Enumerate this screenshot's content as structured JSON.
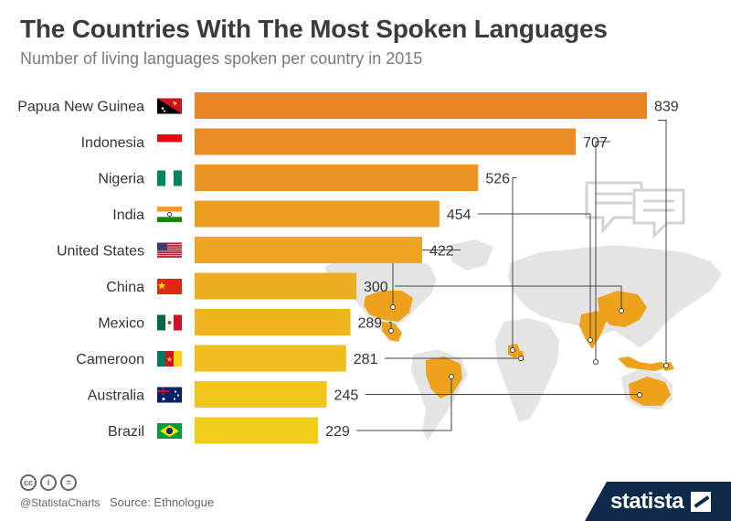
{
  "header": {
    "title": "The Countries With The Most Spoken Languages",
    "subtitle": "Number of living languages spoken per country in 2015"
  },
  "chart_data": {
    "type": "bar",
    "orientation": "horizontal",
    "title": "The Countries With The Most Spoken Languages",
    "subtitle": "Number of living languages spoken per country in 2015",
    "categories": [
      "Papua New Guinea",
      "Indonesia",
      "Nigeria",
      "India",
      "United States",
      "China",
      "Mexico",
      "Cameroon",
      "Australia",
      "Brazil"
    ],
    "values": [
      839,
      707,
      526,
      454,
      422,
      300,
      289,
      281,
      245,
      229
    ],
    "bar_colors": [
      "#e98525",
      "#ea8c24",
      "#eb9523",
      "#eb9d22",
      "#eca422",
      "#edad21",
      "#eeb51f",
      "#efbd1e",
      "#f0c51c",
      "#f1cc1b"
    ],
    "xlabel": "",
    "ylabel": "",
    "grid": false,
    "legend": "none"
  },
  "flags": [
    "papua-new-guinea-flag-icon",
    "indonesia-flag-icon",
    "nigeria-flag-icon",
    "india-flag-icon",
    "united-states-flag-icon",
    "china-flag-icon",
    "mexico-flag-icon",
    "cameroon-flag-icon",
    "australia-flag-icon",
    "brazil-flag-icon"
  ],
  "colors": {
    "map_gray": "#e4e4e4",
    "map_highlight": "#eea21c",
    "brand_navy": "#0e2a4a"
  },
  "footer": {
    "license_icons": [
      "cc",
      "i",
      "="
    ],
    "handle": "@StatistaCharts",
    "source": "Source: Ethnologue",
    "brand": "statista"
  }
}
